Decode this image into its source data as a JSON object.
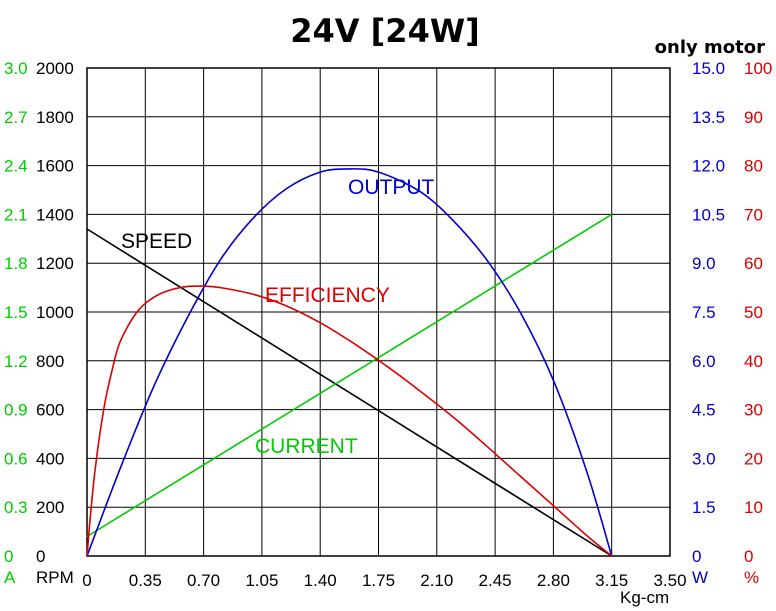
{
  "chart_data": {
    "type": "line",
    "title": "24V [24W]",
    "subtitle": "only motor",
    "xlabel": "Kg-cm",
    "xlim": [
      0,
      3.5
    ],
    "x_ticks": [
      "0",
      "0.35",
      "0.70",
      "1.05",
      "1.40",
      "1.75",
      "2.10",
      "2.45",
      "2.80",
      "3.15",
      "3.50"
    ],
    "grid": true,
    "axes": {
      "current": {
        "unit": "A",
        "color": "#00cc00",
        "range": [
          0,
          3.0
        ],
        "ticks": [
          "0",
          "0.3",
          "0.6",
          "0.9",
          "1.2",
          "1.5",
          "1.8",
          "2.1",
          "2.4",
          "2.7",
          "3.0"
        ]
      },
      "speed": {
        "unit": "RPM",
        "color": "#000000",
        "range": [
          0,
          2000
        ],
        "ticks": [
          "0",
          "200",
          "400",
          "600",
          "800",
          "1000",
          "1200",
          "1400",
          "1600",
          "1800",
          "2000"
        ]
      },
      "output": {
        "unit": "W",
        "color": "#0000cc",
        "range": [
          0,
          15.0
        ],
        "ticks": [
          "0",
          "1.5",
          "3.0",
          "4.5",
          "6.0",
          "7.5",
          "9.0",
          "10.5",
          "12.0",
          "13.5",
          "15.0"
        ]
      },
      "efficiency": {
        "unit": "%",
        "color": "#dd0000",
        "range": [
          0,
          100
        ],
        "ticks": [
          "0",
          "10",
          "20",
          "30",
          "40",
          "50",
          "60",
          "70",
          "80",
          "90",
          "100"
        ]
      }
    },
    "series": [
      {
        "name": "SPEED",
        "axis": "speed",
        "color": "#000000",
        "x": [
          0,
          3.15
        ],
        "y": [
          1340,
          0
        ]
      },
      {
        "name": "CURRENT",
        "axis": "current",
        "color": "#00cc00",
        "x": [
          0,
          3.15
        ],
        "y": [
          0.12,
          2.1
        ]
      },
      {
        "name": "OUTPUT",
        "axis": "output",
        "color": "#0000cc",
        "x": [
          0,
          0.2,
          0.4,
          0.6,
          0.8,
          1.0,
          1.2,
          1.4,
          1.575,
          1.75,
          2.0,
          2.2,
          2.4,
          2.6,
          2.8,
          3.0,
          3.15
        ],
        "y": [
          0,
          2.7,
          5.2,
          7.3,
          9.1,
          10.4,
          11.3,
          11.8,
          11.9,
          11.8,
          11.2,
          10.3,
          9.1,
          7.5,
          5.4,
          2.6,
          0
        ]
      },
      {
        "name": "EFFICIENCY",
        "axis": "efficiency",
        "color": "#dd0000",
        "x": [
          0,
          0.02,
          0.05,
          0.1,
          0.15,
          0.2,
          0.3,
          0.4,
          0.5,
          0.6,
          0.7,
          0.8,
          1.0,
          1.2,
          1.4,
          1.6,
          1.8,
          2.0,
          2.2,
          2.4,
          2.6,
          2.8,
          3.0,
          3.15
        ],
        "y": [
          0,
          8,
          18,
          30,
          38,
          44,
          50,
          53,
          54.5,
          55.2,
          55.3,
          55.0,
          53.6,
          51.2,
          47.8,
          43.6,
          38.9,
          33.8,
          28.4,
          22.5,
          16.4,
          10.3,
          4.2,
          0
        ]
      }
    ]
  }
}
